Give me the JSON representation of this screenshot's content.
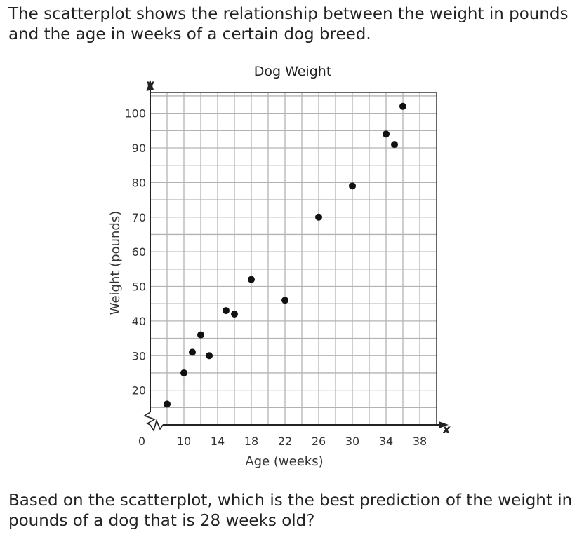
{
  "intro_text": "The scatterplot shows the relationship between the weight in pounds and the age in weeks of a certain dog breed.",
  "question_text": "Based on the scatterplot, which is the best prediction of the weight in pounds of a dog that is 28 weeks old?",
  "chart_data": {
    "type": "scatter",
    "title": "Dog Weight",
    "xlabel": "Age (weeks)",
    "ylabel": "Weight (pounds)",
    "x_axis_letter": "x",
    "y_axis_letter": "y",
    "origin_label": "0",
    "xlim": [
      6,
      40
    ],
    "ylim": [
      10,
      106
    ],
    "x_ticks": [
      10,
      14,
      18,
      22,
      26,
      30,
      34,
      38
    ],
    "y_ticks": [
      20,
      30,
      40,
      50,
      60,
      70,
      80,
      90,
      100
    ],
    "x_grid_step": 2,
    "y_grid_step": 5,
    "axis_break": true,
    "grid": true,
    "marker_color": "#111111",
    "points": [
      {
        "x": 8,
        "y": 16
      },
      {
        "x": 10,
        "y": 25
      },
      {
        "x": 11,
        "y": 31
      },
      {
        "x": 12,
        "y": 36
      },
      {
        "x": 13,
        "y": 30
      },
      {
        "x": 15,
        "y": 43
      },
      {
        "x": 16,
        "y": 42
      },
      {
        "x": 18,
        "y": 52
      },
      {
        "x": 22,
        "y": 46
      },
      {
        "x": 26,
        "y": 70
      },
      {
        "x": 30,
        "y": 79
      },
      {
        "x": 34,
        "y": 94
      },
      {
        "x": 35,
        "y": 91
      },
      {
        "x": 36,
        "y": 102
      }
    ]
  }
}
